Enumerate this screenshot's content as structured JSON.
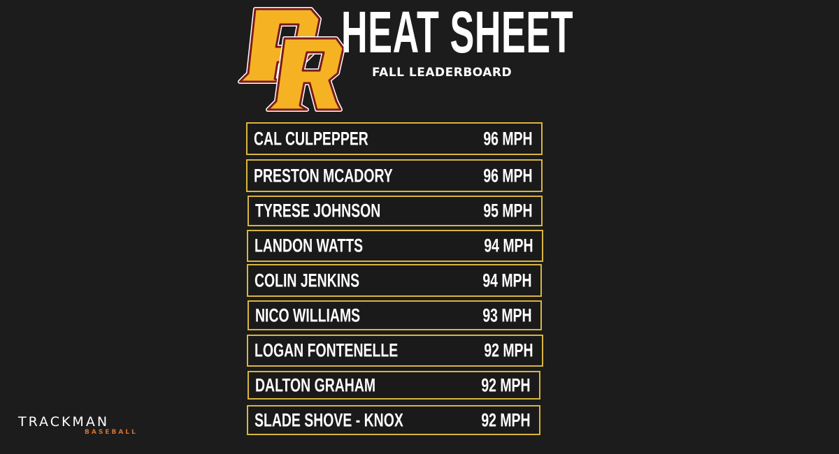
{
  "header": {
    "logo_text": "PR",
    "title": "HEAT SHEET",
    "subtitle": "FALL LEADERBOARD"
  },
  "leaderboard": [
    {
      "name": "CAL CULPEPPER",
      "speed": "96 MPH"
    },
    {
      "name": "PRESTON MCADORY",
      "speed": "96 MPH"
    },
    {
      "name": "TYRESE JOHNSON",
      "speed": "95 MPH"
    },
    {
      "name": "LANDON WATTS",
      "speed": "94 MPH"
    },
    {
      "name": "COLIN JENKINS",
      "speed": "94 MPH"
    },
    {
      "name": "NICO WILLIAMS",
      "speed": "93 MPH"
    },
    {
      "name": "LOGAN FONTENELLE",
      "speed": "92 MPH"
    },
    {
      "name": "DALTON GRAHAM",
      "speed": "92 MPH"
    },
    {
      "name": "SLADE SHOVE - KNOX",
      "speed": "92 MPH"
    }
  ],
  "footer": {
    "brand": "TRACKMAN",
    "brand_sub": "BASEBALL"
  },
  "colors": {
    "background": "#1c1c1c",
    "row_border": "#d9b53f",
    "logo_gold": "#f5b324",
    "logo_maroon": "#7a1a1a",
    "trackman_orange": "#d8712d"
  }
}
